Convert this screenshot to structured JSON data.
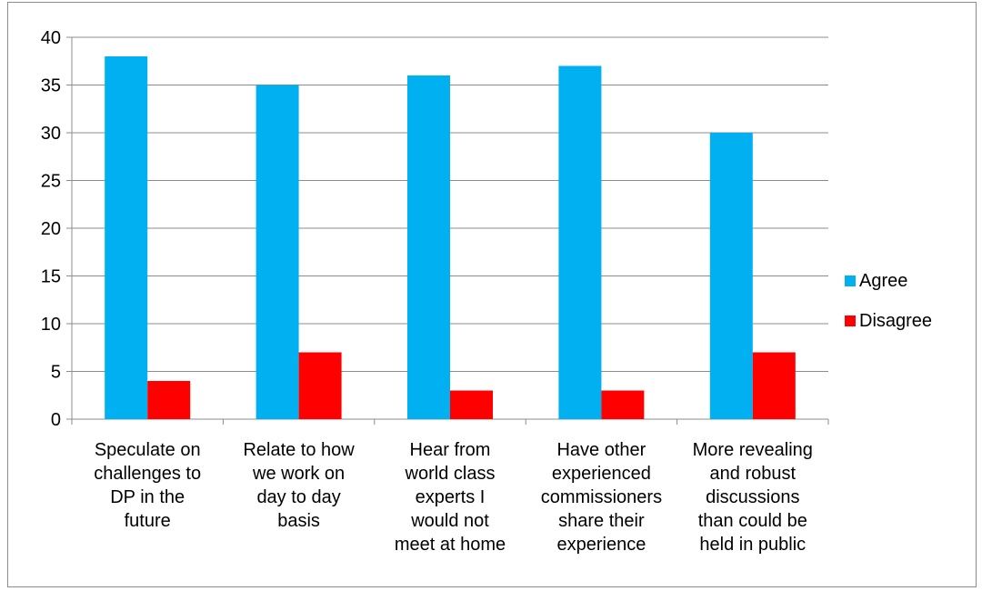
{
  "chart_data": {
    "type": "bar",
    "title": "",
    "xlabel": "",
    "ylabel": "",
    "ylim": [
      0,
      40
    ],
    "yticks": [
      0,
      5,
      10,
      15,
      20,
      25,
      30,
      35,
      40
    ],
    "grid": true,
    "legend_position": "right",
    "categories": [
      [
        "Speculate on",
        "challenges to",
        "DP in the",
        "future"
      ],
      [
        "Relate to how",
        "we work on",
        "day to day",
        "basis"
      ],
      [
        "Hear from",
        "world class",
        "experts I",
        "would not",
        "meet at home"
      ],
      [
        "Have other",
        "experienced",
        "commissioners",
        "share their",
        "experience"
      ],
      [
        "More revealing",
        "and robust",
        "discussions",
        "than could be",
        "held in public"
      ]
    ],
    "series": [
      {
        "name": "Agree",
        "color": "#00b0f0",
        "values": [
          38,
          35,
          36,
          37,
          30
        ]
      },
      {
        "name": "Disagree",
        "color": "#ff0000",
        "values": [
          4,
          7,
          3,
          3,
          7
        ]
      }
    ]
  }
}
